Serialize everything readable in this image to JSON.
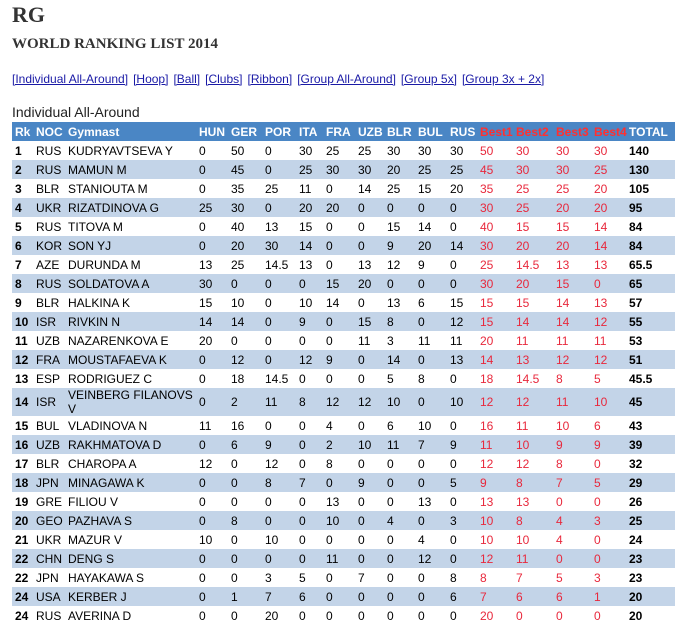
{
  "header": {
    "title": "RG",
    "subtitle": "WORLD RANKING LIST 2014"
  },
  "links": [
    "[Individual All-Around]",
    "[Hoop]",
    "[Ball]",
    "[Clubs]",
    "[Ribbon]",
    "[Group All-Around]",
    "[Group 5x]",
    "[Group 3x + 2x]"
  ],
  "table": {
    "caption": "Individual All-Around",
    "columns": [
      "Rk",
      "NOC",
      "Gymnast",
      "HUN",
      "GER",
      "POR",
      "ITA",
      "FRA",
      "UZB",
      "BLR",
      "BUL",
      "RUS",
      "Best1",
      "Best2",
      "Best3",
      "Best4",
      "TOTAL"
    ],
    "rows": [
      [
        1,
        "RUS",
        "KUDRYAVTSEVA Y",
        0,
        50,
        0,
        30,
        25,
        25,
        30,
        30,
        30,
        50,
        30,
        30,
        30,
        140
      ],
      [
        2,
        "RUS",
        "MAMUN M",
        0,
        45,
        0,
        25,
        30,
        30,
        20,
        25,
        25,
        45,
        30,
        30,
        25,
        130
      ],
      [
        3,
        "BLR",
        "STANIOUTA M",
        0,
        35,
        25,
        11,
        0,
        14,
        25,
        15,
        20,
        35,
        25,
        25,
        20,
        105
      ],
      [
        4,
        "UKR",
        "RIZATDINOVA G",
        25,
        30,
        0,
        20,
        20,
        0,
        0,
        0,
        0,
        30,
        25,
        20,
        20,
        95
      ],
      [
        5,
        "RUS",
        "TITOVA M",
        0,
        40,
        13,
        15,
        0,
        0,
        15,
        14,
        0,
        40,
        15,
        15,
        14,
        84
      ],
      [
        6,
        "KOR",
        "SON YJ",
        0,
        20,
        30,
        14,
        0,
        0,
        9,
        20,
        14,
        30,
        20,
        20,
        14,
        84
      ],
      [
        7,
        "AZE",
        "DURUNDA M",
        13,
        25,
        14.5,
        13,
        0,
        13,
        12,
        9,
        0,
        25,
        14.5,
        13,
        13,
        65.5
      ],
      [
        8,
        "RUS",
        "SOLDATOVA A",
        30,
        0,
        0,
        0,
        15,
        20,
        0,
        0,
        0,
        30,
        20,
        15,
        0,
        65
      ],
      [
        9,
        "BLR",
        "HALKINA K",
        15,
        10,
        0,
        10,
        14,
        0,
        13,
        6,
        15,
        15,
        15,
        14,
        13,
        57
      ],
      [
        10,
        "ISR",
        "RIVKIN N",
        14,
        14,
        0,
        9,
        0,
        15,
        8,
        0,
        12,
        15,
        14,
        14,
        12,
        55
      ],
      [
        11,
        "UZB",
        "NAZARENKOVA E",
        20,
        0,
        0,
        0,
        0,
        11,
        3,
        11,
        11,
        20,
        11,
        11,
        11,
        53
      ],
      [
        12,
        "FRA",
        "MOUSTAFAEVA K",
        0,
        12,
        0,
        12,
        9,
        0,
        14,
        0,
        13,
        14,
        13,
        12,
        12,
        51
      ],
      [
        13,
        "ESP",
        "RODRIGUEZ C",
        0,
        18,
        14.5,
        0,
        0,
        0,
        5,
        8,
        0,
        18,
        14.5,
        8,
        5,
        45.5
      ],
      [
        14,
        "ISR",
        "VEINBERG FILANOVS V",
        0,
        2,
        11,
        8,
        12,
        12,
        10,
        0,
        10,
        12,
        12,
        11,
        10,
        45
      ],
      [
        15,
        "BUL",
        "VLADINOVA N",
        11,
        16,
        0,
        0,
        4,
        0,
        6,
        10,
        0,
        16,
        11,
        10,
        6,
        43
      ],
      [
        16,
        "UZB",
        "RAKHMATOVA D",
        0,
        6,
        9,
        0,
        2,
        10,
        11,
        7,
        9,
        11,
        10,
        9,
        9,
        39
      ],
      [
        17,
        "BLR",
        "CHAROPA A",
        12,
        0,
        12,
        0,
        8,
        0,
        0,
        0,
        0,
        12,
        12,
        8,
        0,
        32
      ],
      [
        18,
        "JPN",
        "MINAGAWA K",
        0,
        0,
        8,
        7,
        0,
        9,
        0,
        0,
        5,
        9,
        8,
        7,
        5,
        29
      ],
      [
        19,
        "GRE",
        "FILIOU V",
        0,
        0,
        0,
        0,
        13,
        0,
        0,
        13,
        0,
        13,
        13,
        0,
        0,
        26
      ],
      [
        20,
        "GEO",
        "PAZHAVA S",
        0,
        8,
        0,
        0,
        10,
        0,
        4,
        0,
        3,
        10,
        8,
        4,
        3,
        25
      ],
      [
        21,
        "UKR",
        "MAZUR V",
        10,
        0,
        10,
        0,
        0,
        0,
        0,
        4,
        0,
        10,
        10,
        4,
        0,
        24
      ],
      [
        22,
        "CHN",
        "DENG S",
        0,
        0,
        0,
        0,
        11,
        0,
        0,
        12,
        0,
        12,
        11,
        0,
        0,
        23
      ],
      [
        22,
        "JPN",
        "HAYAKAWA S",
        0,
        0,
        3,
        5,
        0,
        7,
        0,
        0,
        8,
        8,
        7,
        5,
        3,
        23
      ],
      [
        24,
        "USA",
        "KERBER J",
        0,
        1,
        7,
        6,
        0,
        0,
        0,
        0,
        6,
        7,
        6,
        6,
        1,
        20
      ],
      [
        24,
        "RUS",
        "AVERINA D",
        0,
        0,
        20,
        0,
        0,
        0,
        0,
        0,
        0,
        20,
        0,
        0,
        0,
        20
      ]
    ]
  }
}
